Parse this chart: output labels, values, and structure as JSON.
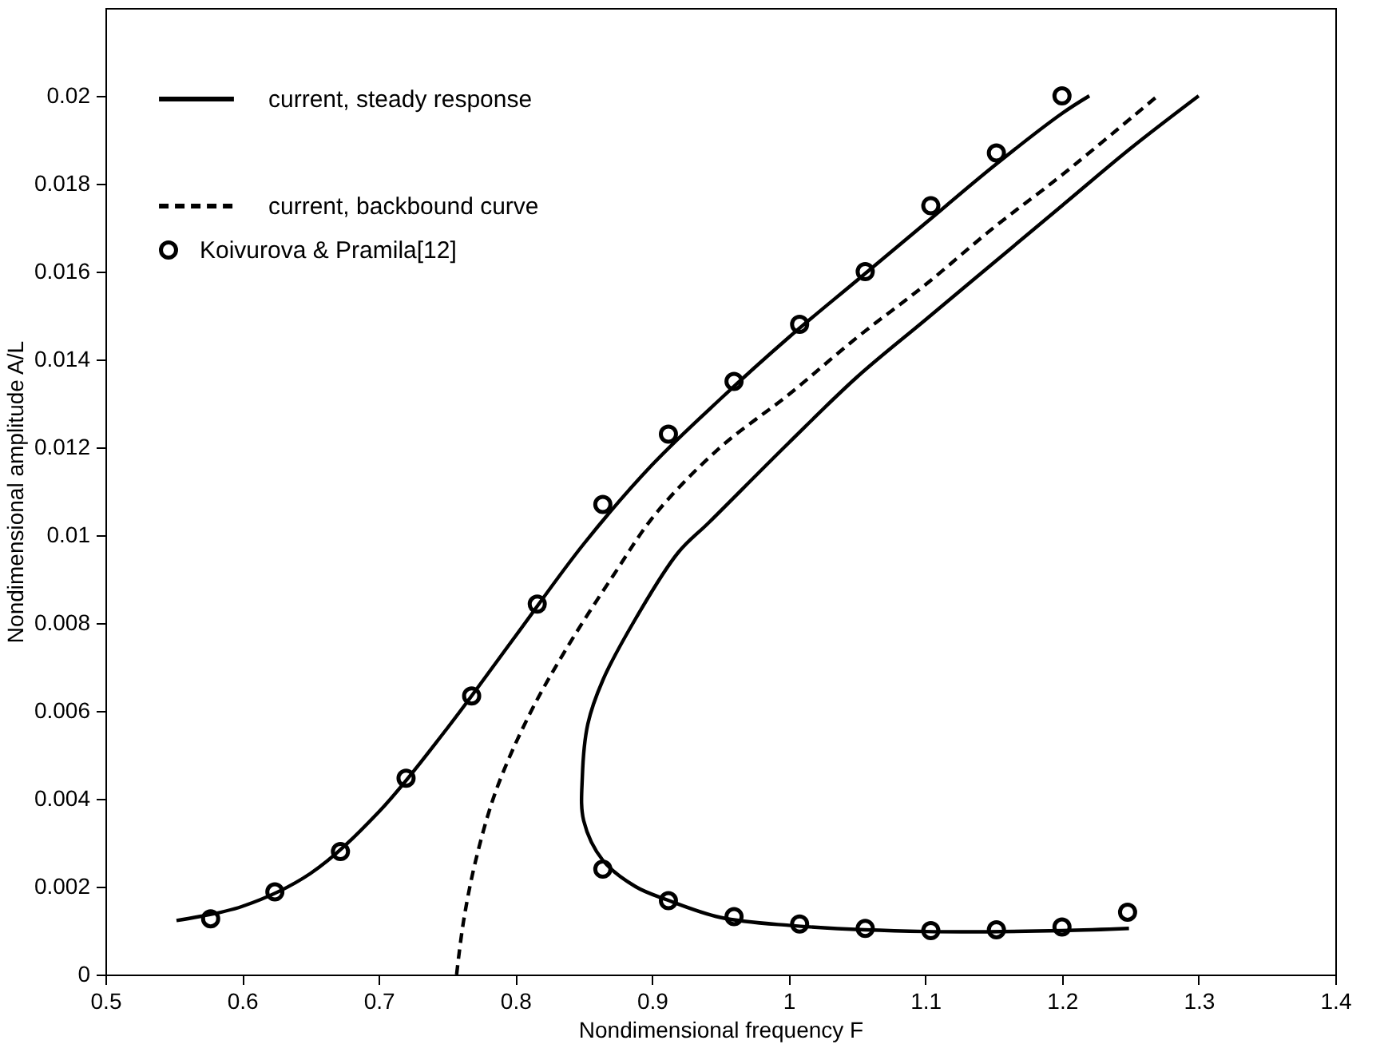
{
  "chart_data": {
    "type": "line",
    "xlabel": "Nondimensional frequency F",
    "ylabel": "Nondimensional amplitude A/L",
    "xlim": [
      0.5,
      1.4
    ],
    "ylim": [
      0,
      0.022
    ],
    "xticks": [
      0.5,
      0.6,
      0.7,
      0.8,
      0.9,
      1,
      1.1,
      1.2,
      1.3,
      1.4
    ],
    "yticks": [
      0,
      0.002,
      0.004,
      0.006,
      0.008,
      0.01,
      0.012,
      0.014,
      0.016,
      0.018,
      0.02
    ],
    "grid": false,
    "legend": "top left",
    "series": [
      {
        "name": "current, steady response",
        "color": "#000000",
        "line_style": "solid",
        "marker": "none",
        "x": [
          0.552,
          0.6,
          0.65,
          0.7,
          0.75,
          0.8,
          0.85,
          0.9,
          0.95,
          1.0,
          1.05,
          1.1,
          1.15,
          1.2,
          1.22
        ],
        "values": [
          0.00123,
          0.00155,
          0.0023,
          0.0037,
          0.0056,
          0.0077,
          0.0098,
          0.0116,
          0.0131,
          0.0145,
          0.0158,
          0.0171,
          0.0184,
          0.0196,
          0.02
        ]
      },
      {
        "name": "current, backbound curve",
        "color": "#000000",
        "line_style": "dashed",
        "marker": "none",
        "x": [
          0.757,
          0.762,
          0.771,
          0.786,
          0.81,
          0.837,
          0.872,
          0.903,
          0.95,
          1.0,
          1.05,
          1.1,
          1.15,
          1.2,
          1.27
        ],
        "values": [
          0,
          0.0012,
          0.0026,
          0.0042,
          0.0059,
          0.0074,
          0.0091,
          0.0105,
          0.012,
          0.0132,
          0.0145,
          0.0157,
          0.017,
          0.0182,
          0.02
        ]
      },
      {
        "color": "#000000",
        "line_style": "solid",
        "marker": "none",
        "x": [
          1.249,
          1.2,
          1.1,
          1.0,
          0.95,
          0.911,
          0.888,
          0.864,
          0.85,
          0.849,
          0.853,
          0.864,
          0.888,
          0.919,
          0.942,
          1.0,
          1.05,
          1.1,
          1.15,
          1.2,
          1.25,
          1.3
        ],
        "values": [
          0.00105,
          0.001,
          0.00098,
          0.00112,
          0.0013,
          0.0017,
          0.002,
          0.0026,
          0.0035,
          0.0045,
          0.0057,
          0.0067,
          0.0081,
          0.0096,
          0.0103,
          0.0121,
          0.0136,
          0.0149,
          0.0162,
          0.0175,
          0.0188,
          0.02
        ]
      },
      {
        "name": "Koivurova & Pramila[12]",
        "type": "scatter",
        "color": "#000000",
        "marker": "circle",
        "x": [
          0.577,
          0.624,
          0.672,
          0.72,
          0.768,
          0.816,
          0.864,
          0.912,
          0.96,
          1.008,
          1.056,
          1.104,
          1.152,
          1.2,
          0.864,
          0.912,
          0.96,
          1.008,
          1.056,
          1.104,
          1.152,
          1.2,
          1.248
        ],
        "values": [
          0.00127,
          0.00188,
          0.0028,
          0.00447,
          0.00634,
          0.00843,
          0.0107,
          0.0123,
          0.0135,
          0.0148,
          0.016,
          0.0175,
          0.0187,
          0.02,
          0.0024,
          0.00168,
          0.00132,
          0.00115,
          0.00105,
          0.001,
          0.00102,
          0.00108,
          0.00142
        ]
      }
    ]
  }
}
